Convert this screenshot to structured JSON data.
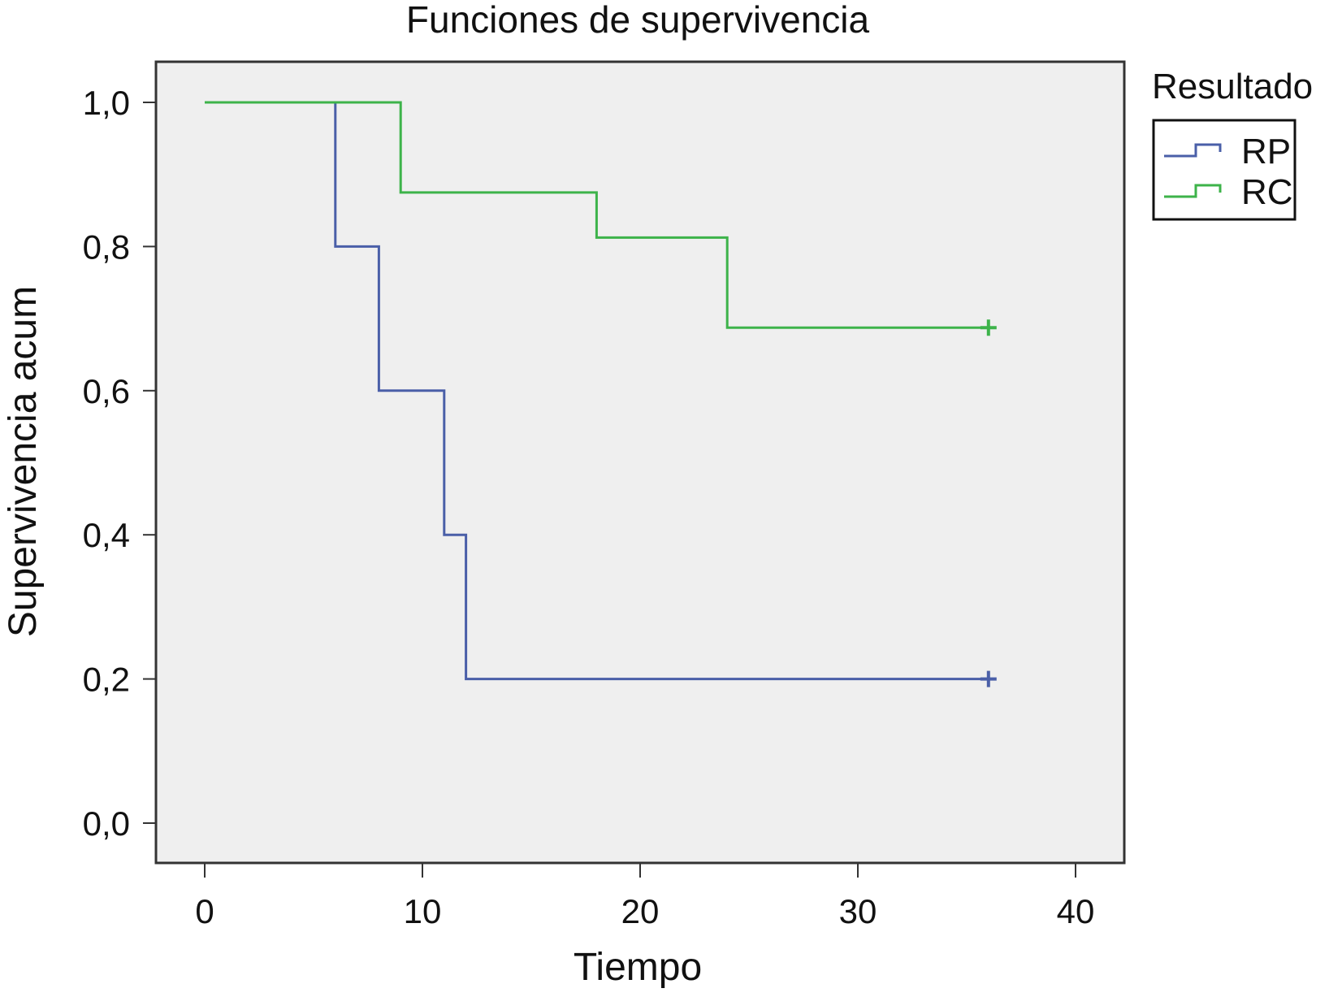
{
  "chart_data": {
    "type": "line",
    "title": "Funciones de supervivencia",
    "xlabel": "Tiempo",
    "ylabel": "Supervivencia acum",
    "xlim": [
      0,
      40
    ],
    "ylim": [
      0,
      1
    ],
    "x_ticks": [
      0,
      10,
      20,
      30,
      40
    ],
    "x_tick_labels": [
      "0",
      "10",
      "20",
      "30",
      "40"
    ],
    "y_ticks": [
      0,
      0.2,
      0.4,
      0.6,
      0.8,
      1.0
    ],
    "y_tick_labels": [
      "0,0",
      "0,2",
      "0,4",
      "0,6",
      "0,8",
      "1,0"
    ],
    "grid": false,
    "step": true,
    "plot_background": "#efefef",
    "legend": {
      "title": "Resultado",
      "placement": "right-top",
      "entries": [
        "RP",
        "RC"
      ]
    },
    "series": [
      {
        "name": "RP",
        "color": "#4a5fa8",
        "x": [
          0,
          6,
          8,
          11,
          12,
          36
        ],
        "y": [
          1.0,
          0.8,
          0.6,
          0.4,
          0.2,
          0.2
        ],
        "censored": [
          [
            36,
            0.2
          ]
        ]
      },
      {
        "name": "RC",
        "color": "#3db34a",
        "x": [
          0,
          9,
          18,
          24,
          36
        ],
        "y": [
          1.0,
          0.875,
          0.8125,
          0.6875,
          0.6875
        ],
        "censored": [
          [
            36,
            0.6875
          ]
        ]
      }
    ]
  }
}
